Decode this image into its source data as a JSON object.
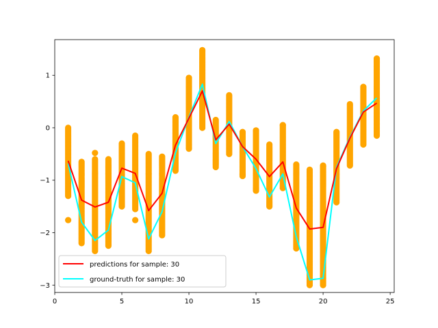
{
  "chart_data": {
    "type": "scatter+line",
    "title": "",
    "xlabel": "",
    "ylabel": "",
    "xlim": [
      0.0,
      25.3
    ],
    "ylim": [
      -3.14,
      1.68
    ],
    "x_ticks": [
      0,
      5,
      10,
      15,
      20,
      25
    ],
    "y_ticks": [
      -3,
      -2,
      -1,
      0,
      1
    ],
    "y_tick_labels": [
      "−3",
      "−2",
      "−1",
      "0",
      "1"
    ],
    "grid": false,
    "legend_location": "lower-left",
    "scatter_color": "#ffa500",
    "samples": {
      "x": [
        1,
        2,
        3,
        4,
        5,
        6,
        7,
        8,
        9,
        10,
        11,
        12,
        13,
        14,
        15,
        16,
        17,
        18,
        19,
        20,
        21,
        22,
        23,
        24
      ],
      "min": [
        -1.3,
        -2.2,
        -2.35,
        -2.25,
        -1.5,
        -1.55,
        -2.35,
        -2.05,
        -0.82,
        -0.4,
        0.0,
        -0.75,
        -0.5,
        -0.92,
        -1.2,
        -1.5,
        -1.15,
        -2.3,
        -3.0,
        -3.0,
        -1.42,
        -0.72,
        -0.32,
        -0.15
      ],
      "max": [
        0.0,
        -0.65,
        -0.6,
        -0.6,
        -0.3,
        -0.15,
        -0.5,
        -0.55,
        0.2,
        0.95,
        1.48,
        0.15,
        0.62,
        -0.08,
        -0.05,
        -0.32,
        0.05,
        -0.7,
        -0.8,
        -0.72,
        -0.08,
        0.45,
        0.78,
        1.32
      ],
      "outliers": [
        {
          "x": 1,
          "y": -1.76
        },
        {
          "x": 3,
          "y": -0.48
        },
        {
          "x": 6,
          "y": -1.76
        },
        {
          "x": 10,
          "y": 0.95
        },
        {
          "x": 17,
          "y": 0.05
        },
        {
          "x": 20,
          "y": -0.74
        }
      ]
    },
    "series": [
      {
        "name": "predictions for sample: 30",
        "color": "#ff0000",
        "x": [
          1,
          2,
          3,
          4,
          5,
          6,
          7,
          8,
          9,
          10,
          11,
          12,
          13,
          14,
          15,
          16,
          17,
          18,
          19,
          20,
          21,
          22,
          23,
          24
        ],
        "values": [
          -0.63,
          -1.38,
          -1.51,
          -1.42,
          -0.77,
          -0.87,
          -1.58,
          -1.25,
          -0.33,
          0.18,
          0.7,
          -0.23,
          0.07,
          -0.36,
          -0.6,
          -0.93,
          -0.65,
          -1.53,
          -1.93,
          -1.9,
          -0.78,
          -0.2,
          0.3,
          0.47
        ]
      },
      {
        "name": "ground-truth for sample: 30",
        "color": "#00ffff",
        "x": [
          1,
          2,
          3,
          4,
          5,
          6,
          7,
          8,
          9,
          10,
          11,
          12,
          13,
          14,
          15,
          16,
          17,
          18,
          19,
          20,
          21,
          22,
          23,
          24
        ],
        "values": [
          -0.68,
          -1.8,
          -2.15,
          -1.95,
          -0.93,
          -1.05,
          -2.12,
          -1.6,
          -0.48,
          0.2,
          0.83,
          -0.3,
          0.12,
          -0.36,
          -0.78,
          -1.32,
          -0.88,
          -2.08,
          -2.9,
          -2.87,
          -0.75,
          -0.18,
          0.32,
          0.57
        ]
      }
    ]
  }
}
